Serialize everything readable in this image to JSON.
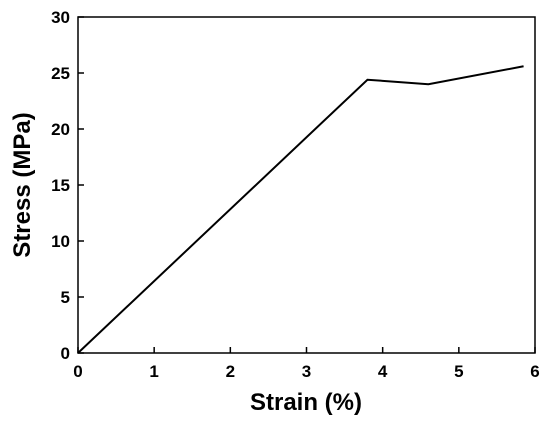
{
  "chart_data": {
    "type": "line",
    "x_label": "Strain (%)",
    "y_label": "Stress (MPa)",
    "x": [
      0,
      3.8,
      4.6,
      5.85
    ],
    "values": [
      0,
      24.4,
      24.0,
      25.6
    ],
    "color": "#000000",
    "xlim": [
      0,
      6
    ],
    "xticks": [
      0,
      1,
      2,
      3,
      4,
      5,
      6
    ],
    "ylim": [
      0,
      30
    ],
    "yticks": [
      0,
      5,
      10,
      15,
      20,
      25,
      30
    ],
    "grid": false
  }
}
